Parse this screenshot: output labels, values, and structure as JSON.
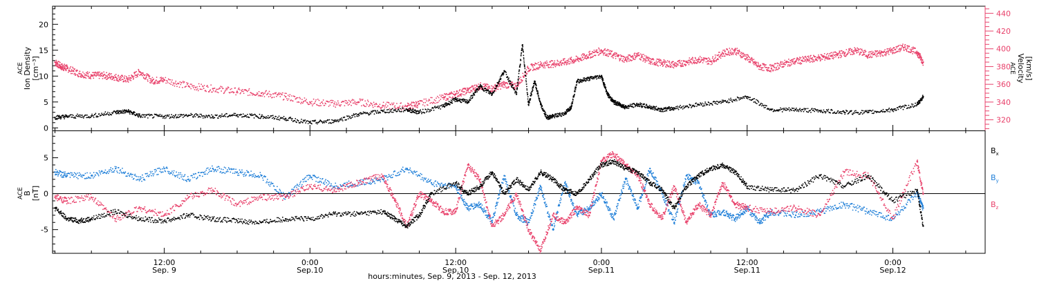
{
  "colors": {
    "axis": "#000000",
    "black": "#000000",
    "pink": "#e8406a",
    "blue": "#1f7fd8"
  },
  "top_panel": {
    "left_label": [
      "ACE",
      "Ion Density",
      "[cm⁻³]"
    ],
    "right_label": [
      "ACE",
      "Velocity",
      "[km/s]"
    ],
    "left_ticks": [
      "0",
      "5",
      "10",
      "15",
      "20"
    ],
    "right_ticks": [
      "320",
      "340",
      "360",
      "380",
      "400",
      "420",
      "440"
    ]
  },
  "bottom_panel": {
    "left_label": [
      "ACE",
      "B",
      "[nT]"
    ],
    "left_ticks": [
      "-5",
      "0",
      "5"
    ],
    "legend": [
      {
        "base": "B",
        "sub": "x"
      },
      {
        "base": "B",
        "sub": "y"
      },
      {
        "base": "B",
        "sub": "z"
      }
    ]
  },
  "x_axis": {
    "tick_labels": [
      {
        "time": "12:00",
        "date": "Sep. 9"
      },
      {
        "time": "0:00",
        "date": "Sep.10"
      },
      {
        "time": "12:00",
        "date": "Sep.10"
      },
      {
        "time": "0:00",
        "date": "Sep.11"
      },
      {
        "time": "12:00",
        "date": "Sep.11"
      },
      {
        "time": "0:00",
        "date": "Sep.12"
      }
    ],
    "title": "hours:minutes, Sep.  9, 2013 - Sep. 12, 2013"
  },
  "chart_data": [
    {
      "type": "scatter",
      "panel": "top",
      "x_unit": "hours since 2013-09-09 00:00 UT",
      "x_range": [
        2.8,
        79.6
      ],
      "ylim_left": [
        -0.5,
        23.5
      ],
      "ylim_right": [
        308,
        448
      ],
      "ylabel": "ACE Ion Density [cm⁻³]",
      "ylabel_right": "ACE Velocity [km/s]",
      "series": [
        {
          "color": "black",
          "axis": "left",
          "x": [
            3,
            4,
            6,
            8,
            9,
            10,
            12,
            14,
            16,
            18,
            20,
            22,
            24,
            26,
            28,
            30,
            32,
            33,
            35,
            36,
            37,
            38,
            39,
            40,
            41,
            41.5,
            42,
            42.5,
            43,
            43.5,
            44,
            45,
            45.5,
            46,
            47,
            48,
            48.5,
            49,
            49.5,
            50,
            51,
            52,
            53,
            54,
            56,
            58,
            60,
            62,
            64,
            66,
            68,
            70,
            72,
            74,
            74.5
          ],
          "y": [
            2.0,
            2.2,
            2.3,
            3.0,
            3.2,
            2.3,
            2.2,
            2.4,
            2.2,
            2.5,
            2.2,
            1.8,
            1.0,
            1.3,
            2.6,
            3.2,
            3.5,
            3.0,
            4.2,
            5.5,
            5.0,
            8.0,
            6.5,
            11.0,
            6.5,
            16.0,
            4.5,
            9.0,
            4.5,
            2.0,
            2.2,
            2.8,
            4.0,
            9.0,
            9.5,
            10.0,
            6.5,
            5.0,
            4.5,
            4.0,
            4.5,
            4.0,
            3.5,
            3.8,
            4.5,
            5.0,
            6.0,
            3.5,
            3.5,
            3.3,
            3.0,
            3.0,
            3.5,
            4.5,
            6.0
          ]
        },
        {
          "color": "pink",
          "axis": "right",
          "x": [
            3,
            3.5,
            4,
            5,
            6,
            7,
            8,
            9,
            10,
            11,
            12,
            14,
            16,
            18,
            20,
            22,
            24,
            26,
            28,
            30,
            32,
            33,
            35,
            36,
            37,
            38,
            39,
            40,
            41,
            42,
            43,
            44,
            45,
            46,
            47,
            48,
            49,
            50,
            51,
            52,
            53,
            54,
            55,
            56,
            57,
            58,
            59,
            60,
            61,
            62,
            63,
            64,
            65,
            66,
            67,
            68,
            69,
            70,
            71,
            72,
            73,
            74,
            74.5
          ],
          "y": [
            385,
            380,
            378,
            372,
            370,
            370,
            368,
            365,
            374,
            364,
            365,
            358,
            355,
            352,
            350,
            346,
            340,
            338,
            340,
            336,
            335,
            338,
            345,
            349,
            353,
            358,
            355,
            360,
            358,
            378,
            382,
            383,
            385,
            388,
            393,
            398,
            393,
            388,
            393,
            386,
            384,
            382,
            385,
            388,
            386,
            395,
            398,
            390,
            380,
            378,
            383,
            386,
            388,
            390,
            392,
            395,
            398,
            393,
            395,
            398,
            402,
            396,
            385
          ]
        }
      ]
    },
    {
      "type": "scatter",
      "panel": "bottom",
      "x_unit": "hours since 2013-09-09 00:00 UT",
      "x_range": [
        2.8,
        79.6
      ],
      "ylim": [
        -8.3,
        8.8
      ],
      "ylabel": "ACE B [nT]",
      "series": [
        {
          "name": "Bx",
          "color": "black",
          "x": [
            3,
            4,
            5,
            6,
            8,
            10,
            12,
            14,
            16,
            18,
            20,
            22,
            24,
            26,
            28,
            30,
            31,
            32,
            33,
            34,
            36,
            37,
            38,
            39,
            40,
            41,
            42,
            43,
            44,
            45,
            46,
            47,
            48,
            49,
            50,
            51,
            52,
            53,
            54,
            55,
            56,
            57,
            58,
            59,
            60,
            62,
            64,
            66,
            68,
            70,
            72,
            74,
            74.5
          ],
          "y": [
            -2.0,
            -3.5,
            -3.8,
            -3.5,
            -2.5,
            -3.5,
            -3.8,
            -3.0,
            -3.5,
            -3.8,
            -4.0,
            -3.5,
            -3.5,
            -2.8,
            -2.8,
            -2.5,
            -3.5,
            -4.5,
            -3.0,
            0.0,
            1.5,
            0.0,
            1.0,
            3.0,
            0.0,
            2.0,
            0.5,
            3.0,
            2.0,
            0.5,
            0.0,
            2.0,
            4.0,
            4.5,
            3.5,
            3.0,
            1.5,
            0.5,
            -2.0,
            1.0,
            2.5,
            3.5,
            4.0,
            3.0,
            1.0,
            0.5,
            0.5,
            2.5,
            1.0,
            2.5,
            -1.0,
            0.5,
            -4.5
          ]
        },
        {
          "name": "By",
          "color": "blue",
          "x": [
            3,
            4,
            6,
            8,
            10,
            12,
            14,
            16,
            18,
            20,
            22,
            24,
            26,
            28,
            30,
            32,
            34,
            36,
            37,
            38,
            39,
            40,
            41,
            42,
            43,
            44,
            45,
            46,
            47,
            48,
            49,
            50,
            51,
            52,
            53,
            54,
            55,
            56,
            57,
            58,
            59,
            60,
            61,
            62,
            64,
            66,
            68,
            70,
            72,
            74,
            74.5
          ],
          "y": [
            3.0,
            2.5,
            2.5,
            3.5,
            2.0,
            3.5,
            2.0,
            3.5,
            3.0,
            2.5,
            -0.5,
            2.5,
            1.0,
            1.5,
            2.0,
            3.5,
            1.5,
            1.0,
            -2.0,
            -1.5,
            -4.0,
            2.5,
            -3.0,
            -4.0,
            1.0,
            -5.0,
            1.5,
            -3.0,
            -2.0,
            0.0,
            -3.5,
            2.0,
            -2.0,
            3.5,
            0.0,
            -4.0,
            2.5,
            1.5,
            -3.0,
            -2.5,
            -3.5,
            -2.0,
            -4.0,
            -2.5,
            -3.0,
            -2.5,
            -1.5,
            -2.5,
            -3.5,
            0.0,
            -2.0
          ]
        },
        {
          "name": "Bz",
          "color": "pink",
          "x": [
            3,
            4,
            6,
            8,
            10,
            12,
            14,
            16,
            18,
            20,
            22,
            24,
            26,
            28,
            30,
            31,
            32,
            33,
            34,
            35,
            36,
            37,
            38,
            39,
            40,
            41,
            42,
            43,
            44,
            45,
            46,
            47,
            48,
            49,
            50,
            51,
            52,
            53,
            54,
            55,
            56,
            57,
            58,
            59,
            60,
            62,
            64,
            66,
            68,
            70,
            72,
            74,
            74.5
          ],
          "y": [
            -0.5,
            -1.0,
            -0.5,
            -3.5,
            -2.0,
            -3.0,
            -0.5,
            0.5,
            -1.5,
            -0.5,
            -0.5,
            1.0,
            0.5,
            1.5,
            2.5,
            -1.0,
            -4.5,
            0.0,
            -1.0,
            -2.5,
            -2.5,
            4.0,
            2.0,
            -4.5,
            -3.0,
            0.0,
            -5.0,
            -8.0,
            -3.0,
            -4.0,
            -2.0,
            -3.0,
            4.5,
            5.5,
            4.0,
            2.5,
            -1.5,
            -3.5,
            1.0,
            -4.0,
            -1.5,
            -3.0,
            1.5,
            -1.5,
            -2.0,
            -2.5,
            -2.0,
            -3.0,
            3.0,
            2.5,
            -3.5,
            4.5,
            0.0
          ]
        }
      ]
    }
  ]
}
